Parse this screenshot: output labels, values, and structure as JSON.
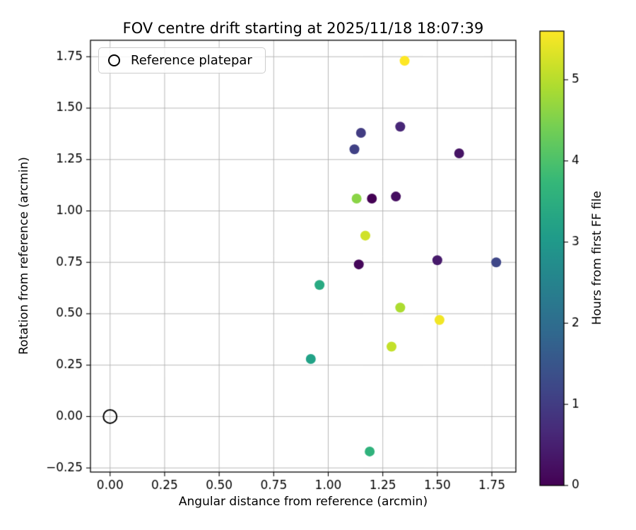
{
  "chart_data": {
    "type": "scatter",
    "title": "FOV centre drift starting at 2025/11/18 18:07:39",
    "xlabel": "Angular distance from reference (arcmin)",
    "ylabel": "Rotation from reference (arcmin)",
    "xlim": [
      -0.09,
      1.86
    ],
    "ylim": [
      -0.27,
      1.83
    ],
    "xticks": [
      0.0,
      0.25,
      0.5,
      0.75,
      1.0,
      1.25,
      1.5,
      1.75
    ],
    "yticks": [
      -0.25,
      0.0,
      0.25,
      0.5,
      0.75,
      1.0,
      1.25,
      1.5,
      1.75
    ],
    "grid": true,
    "legend": {
      "label": "Reference platepar",
      "position": "upper-left",
      "marker": "open-circle"
    },
    "reference_point": {
      "x": 0.0,
      "y": 0.0
    },
    "points": [
      {
        "x": 1.35,
        "y": 1.73,
        "hours": 5.6
      },
      {
        "x": 1.15,
        "y": 1.38,
        "hours": 1.0
      },
      {
        "x": 1.33,
        "y": 1.41,
        "hours": 0.6
      },
      {
        "x": 1.12,
        "y": 1.3,
        "hours": 1.1
      },
      {
        "x": 1.6,
        "y": 1.28,
        "hours": 0.3
      },
      {
        "x": 1.13,
        "y": 1.06,
        "hours": 4.6
      },
      {
        "x": 1.2,
        "y": 1.06,
        "hours": 0.0
      },
      {
        "x": 1.31,
        "y": 1.07,
        "hours": 0.2
      },
      {
        "x": 1.17,
        "y": 0.88,
        "hours": 5.2
      },
      {
        "x": 1.14,
        "y": 0.74,
        "hours": 0.1
      },
      {
        "x": 1.5,
        "y": 0.76,
        "hours": 0.4
      },
      {
        "x": 1.77,
        "y": 0.75,
        "hours": 1.2
      },
      {
        "x": 0.96,
        "y": 0.64,
        "hours": 3.4
      },
      {
        "x": 1.33,
        "y": 0.53,
        "hours": 4.9
      },
      {
        "x": 1.51,
        "y": 0.47,
        "hours": 5.5
      },
      {
        "x": 1.29,
        "y": 0.34,
        "hours": 5.1
      },
      {
        "x": 0.92,
        "y": 0.28,
        "hours": 3.2
      },
      {
        "x": 1.19,
        "y": -0.17,
        "hours": 3.6
      }
    ],
    "colorbar": {
      "label": "Hours from first FF file",
      "vmin": 0,
      "vmax": 5.6,
      "ticks": [
        0,
        1,
        2,
        3,
        4,
        5
      ],
      "colormap": "viridis"
    },
    "colormap_stops": [
      "#440154",
      "#482878",
      "#3e4989",
      "#31688e",
      "#26828e",
      "#1f9e89",
      "#35b779",
      "#6ece58",
      "#b5de2b",
      "#fde725"
    ]
  }
}
